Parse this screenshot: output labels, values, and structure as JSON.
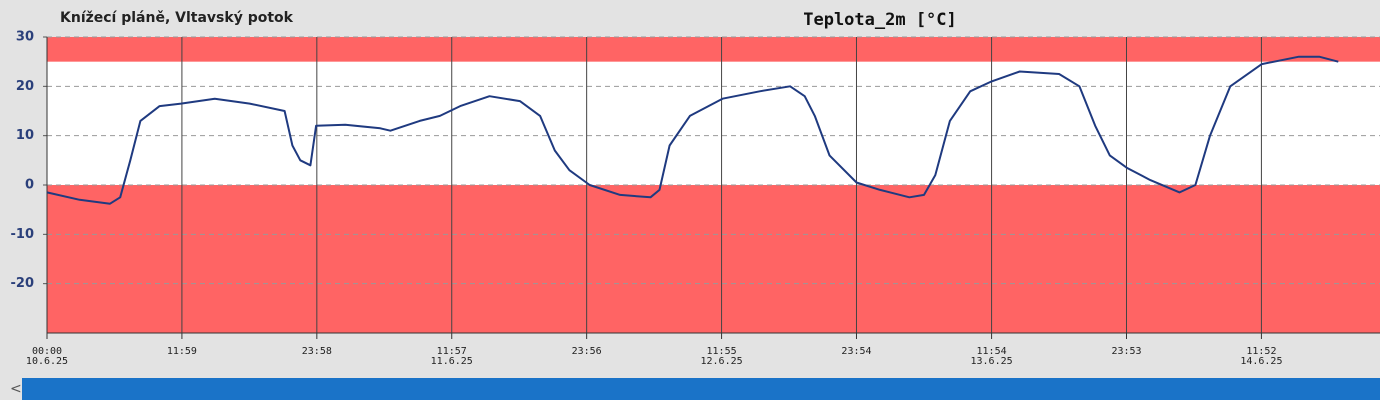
{
  "chart_data": {
    "type": "line",
    "location": "Knížecí pláně, Vltavský potok",
    "title": "Teplota_2m [°C]",
    "ylim": [
      -30,
      30
    ],
    "yticks": [
      -20,
      -10,
      0,
      10,
      20,
      30
    ],
    "xlim": [
      0,
      118.4
    ],
    "xticks": [
      {
        "value": 0,
        "label": "00:00",
        "date": "10.6.25"
      },
      {
        "value": 11.983,
        "label": "11:59"
      },
      {
        "value": 23.967,
        "label": "23:58"
      },
      {
        "value": 35.95,
        "label": "11:57",
        "date": "11.6.25"
      },
      {
        "value": 47.933,
        "label": "23:56"
      },
      {
        "value": 59.917,
        "label": "11:55",
        "date": "12.6.25"
      },
      {
        "value": 71.9,
        "label": "23:54"
      },
      {
        "value": 83.9,
        "label": "11:54",
        "date": "13.6.25"
      },
      {
        "value": 95.883,
        "label": "23:53"
      },
      {
        "value": 107.867,
        "label": "11:52",
        "date": "14.6.25"
      }
    ],
    "grid": true,
    "bands": [
      {
        "from": 25,
        "to": 30,
        "color": "#ff6464"
      },
      {
        "from": -30,
        "to": 0,
        "color": "#ff6464"
      }
    ],
    "series": [
      {
        "color": "#1f3a80",
        "x": [
          0,
          2.9,
          5.6,
          6.5,
          7.4,
          8.3,
          10,
          11.9,
          14.9,
          18,
          21.1,
          21.8,
          22.5,
          23.4,
          23.9,
          26.5,
          29.6,
          30.5,
          33.1,
          34.9,
          36.7,
          39.3,
          42,
          43.8,
          45.1,
          46.4,
          48.2,
          50.9,
          53.6,
          54.4,
          55.3,
          57.1,
          60,
          63.3,
          66,
          67.3,
          68.2,
          69.5,
          71.9,
          74,
          76.6,
          77.9,
          78.9,
          80.2,
          82,
          83.9,
          86.4,
          89.9,
          91.7,
          93.1,
          94.4,
          95.9,
          98,
          100.6,
          102,
          103.3,
          105.1,
          107.9,
          111.2,
          113,
          114.7
        ],
        "values": [
          -1.5,
          -3,
          -3.8,
          -2.5,
          5,
          13,
          16,
          16.5,
          17.5,
          16.5,
          15,
          8,
          5,
          4,
          12,
          12.2,
          11.5,
          11,
          13,
          14,
          16,
          18,
          17,
          14,
          7,
          3,
          0,
          -2,
          -2.5,
          -1,
          8,
          14,
          17.5,
          19,
          20,
          18,
          14,
          6,
          0.5,
          -1,
          -2.5,
          -2,
          2,
          13,
          19,
          21,
          23,
          22.5,
          20,
          12,
          6,
          3.5,
          1,
          -1.5,
          0,
          10,
          20,
          24.5,
          26,
          26,
          25
        ]
      }
    ]
  }
}
